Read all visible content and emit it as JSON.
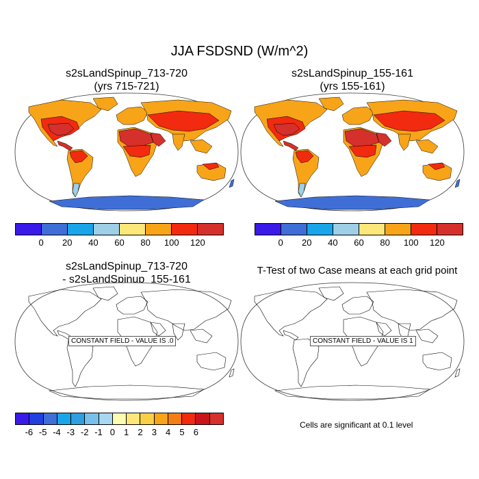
{
  "main_title": "JJA FSDSND (W/m^2)",
  "panels": {
    "top_left": {
      "title_line1": "s2sLandSpinup_713-720",
      "title_line2": "(yrs 715-721)"
    },
    "top_right": {
      "title_line1": "s2sLandSpinup_155-161",
      "title_line2": "(yrs 155-161)"
    },
    "bottom_left": {
      "title_line1": "s2sLandSpinup_713-720",
      "title_line2": "- s2sLandSpinup_155-161",
      "field_label": "CONSTANT FIELD - VALUE IS .0"
    },
    "bottom_right": {
      "title_line1": "T-Test of two Case means at each grid point",
      "field_label": "CONSTANT FIELD - VALUE IS 1"
    }
  },
  "colorbar_top": {
    "colors": [
      "#3a1ae8",
      "#3f6fd6",
      "#1aa5e8",
      "#9ecfe6",
      "#fbe77a",
      "#f8a418",
      "#f22a10",
      "#d5302b"
    ],
    "ticks": [
      "0",
      "20",
      "40",
      "60",
      "80",
      "100",
      "120"
    ]
  },
  "colorbar_bottom": {
    "colors": [
      "#3a1ae8",
      "#2040e0",
      "#3f6fd6",
      "#1aa5e8",
      "#2f9fe0",
      "#78c0ea",
      "#a9d7ee",
      "#fffbb0",
      "#fbe77a",
      "#f9cf45",
      "#f8a418",
      "#f67c14",
      "#f22a10",
      "#c8141a",
      "#d5302b"
    ],
    "ticks": [
      "-6",
      "-5",
      "-4",
      "-3",
      "-2",
      "-1",
      "0",
      "1",
      "2",
      "3",
      "4",
      "5",
      "6"
    ]
  },
  "significance_note": "Cells are significant at 0.1 level",
  "map_colors": {
    "hot": "#d5302b",
    "warm": "#f22a10",
    "mid": "#f8a418",
    "mild": "#fbe77a",
    "cool": "#9ecfe6",
    "cold": "#3f6fd6",
    "ocean": "#ffffff"
  }
}
